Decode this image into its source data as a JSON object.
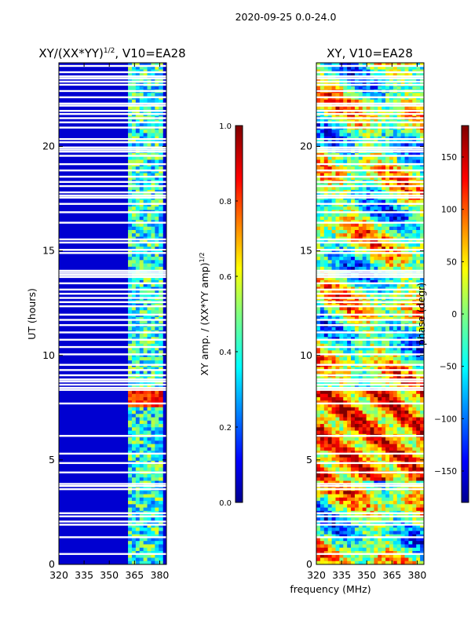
{
  "suptitle": "2020-09-25 0.0-24.0",
  "xlabel_shared": "frequency (MHz)",
  "chart_data": [
    {
      "type": "heatmap",
      "title_main": "XY/(XX*YY)",
      "title_sup": "1/2",
      "title_tail": ", V10=EA28",
      "xlabel": "",
      "ylabel": "UT (hours)",
      "xlim": [
        320,
        384
      ],
      "ylim": [
        0,
        24
      ],
      "xticks": [
        320,
        335,
        350,
        365,
        380
      ],
      "yticks": [
        0,
        5,
        10,
        15,
        20
      ],
      "colorbar": {
        "label_main": "XY amp. / (XX*YY amp)",
        "label_sup": "1/2",
        "range": [
          0.0,
          1.0
        ],
        "ticks": [
          "0.0",
          "0.2",
          "0.4",
          "0.6",
          "0.8",
          "1.0"
        ],
        "colormap": "jet"
      },
      "structure": {
        "low_band_mhz": [
          320,
          361
        ],
        "low_band_level": 0.08,
        "active_band_mhz": [
          361,
          381
        ],
        "active_band_level_range": [
          0.2,
          0.6
        ],
        "bright_window_hours": [
          7.6,
          8.4
        ],
        "bright_window_level": 0.85
      }
    },
    {
      "type": "heatmap",
      "title": "XY, V10=EA28",
      "xlabel": "frequency (MHz)",
      "ylabel": "",
      "xlim": [
        320,
        384
      ],
      "ylim": [
        0,
        24
      ],
      "xticks": [
        320,
        335,
        350,
        365,
        380
      ],
      "yticks": [
        0,
        5,
        10,
        15,
        20
      ],
      "colorbar": {
        "label": "phase (degr)",
        "range": [
          -180,
          180
        ],
        "ticks": [
          "150",
          "100",
          "50",
          "0",
          "−50",
          "−100",
          "−150"
        ],
        "tick_values": [
          150,
          100,
          50,
          0,
          -50,
          -100,
          -150
        ],
        "colormap": "jet"
      }
    }
  ],
  "flagged_hours": [
    0.5,
    1.3,
    1.9,
    2.05,
    2.3,
    2.45,
    3.6,
    3.75,
    3.85,
    4.4,
    4.85,
    5.3,
    6.15,
    7.7,
    8.35,
    8.45,
    8.6,
    8.75,
    8.85,
    9.05,
    9.3,
    9.55,
    10.05,
    10.4,
    10.75,
    11.1,
    11.45,
    11.7,
    11.95,
    12.35,
    12.55,
    12.75,
    12.95,
    13.15,
    13.45,
    13.75,
    13.85,
    13.95,
    14.05,
    14.9,
    15.05,
    15.4,
    15.55,
    16.35,
    16.85,
    17.25,
    17.55,
    17.65,
    17.8,
    18.1,
    18.3,
    18.55,
    18.85,
    19.15,
    19.55,
    19.75,
    19.85,
    19.95,
    20.2,
    20.35,
    20.9,
    21.15,
    21.35,
    21.55,
    21.7,
    21.95,
    22.05,
    22.35,
    22.65,
    22.95,
    23.1,
    23.25,
    23.35,
    23.55,
    23.85
  ]
}
